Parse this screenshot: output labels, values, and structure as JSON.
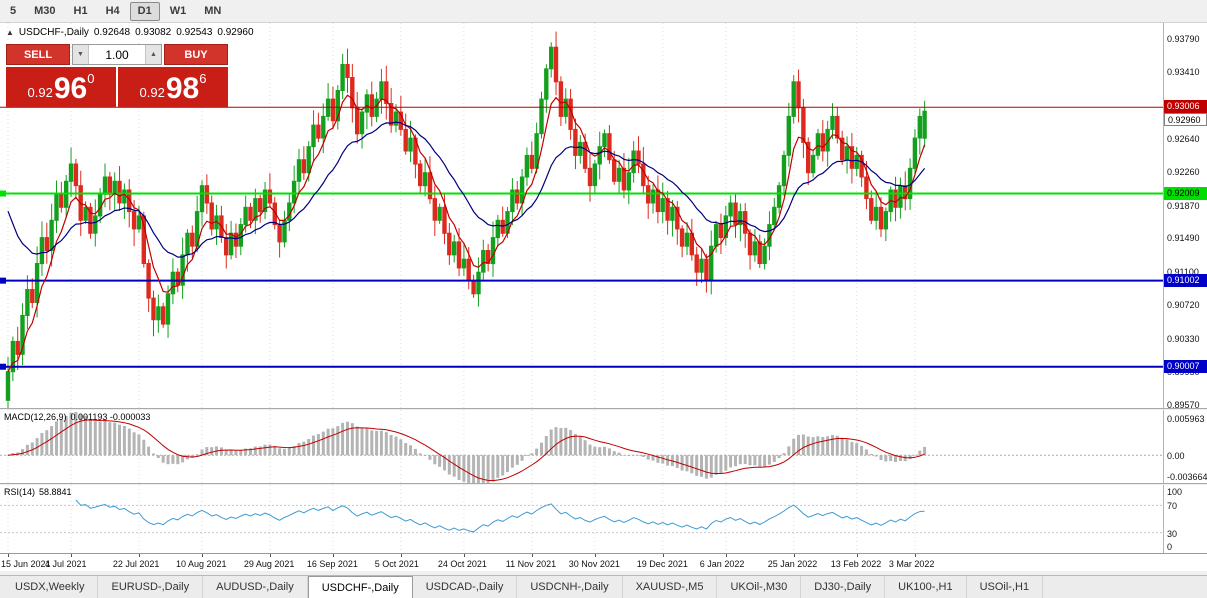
{
  "toolbar": {
    "timeframes": [
      {
        "label": "5",
        "active": false
      },
      {
        "label": "M30",
        "active": false
      },
      {
        "label": "H1",
        "active": false
      },
      {
        "label": "H4",
        "active": false
      },
      {
        "label": "D1",
        "active": true
      },
      {
        "label": "W1",
        "active": false
      },
      {
        "label": "MN",
        "active": false
      }
    ]
  },
  "chart": {
    "header": {
      "collapse_icon": "▲",
      "title": "USDCHF-,Daily",
      "open": "0.92648",
      "high": "0.93082",
      "low": "0.92543",
      "close": "0.92960"
    },
    "trade_panel": {
      "sell_label": "SELL",
      "buy_label": "BUY",
      "volume": "1.00",
      "vol_down_icon": "▼",
      "vol_up_icon": "▲",
      "sell_price": {
        "prefix": "0.92",
        "big": "96",
        "sup": "0"
      },
      "buy_price": {
        "prefix": "0.92",
        "big": "98",
        "sup": "6"
      }
    },
    "price_axis_labels": [
      "0.93790",
      "0.93410",
      "0.93030",
      "0.92640",
      "0.92260",
      "0.91870",
      "0.91490",
      "0.91100",
      "0.90720",
      "0.90330",
      "0.89950",
      "0.89570"
    ],
    "hlines": [
      {
        "price": 0.93006,
        "label": "0.93006",
        "color": "#b80000",
        "box_bg": "#c00000",
        "text": "#ffffff",
        "width": 1,
        "handle": false
      },
      {
        "price": 0.92009,
        "label": "0.92009",
        "color": "#00e100",
        "box_bg": "#00dd00",
        "text": "#000000",
        "width": 2,
        "handle": true
      },
      {
        "price": 0.91002,
        "label": "0.91002",
        "color": "#0000c0",
        "box_bg": "#0000c8",
        "text": "#ffffff",
        "width": 2,
        "handle": true
      },
      {
        "price": 0.90007,
        "label": "0.90007",
        "color": "#0000c0",
        "box_bg": "#0000c8",
        "text": "#ffffff",
        "width": 2,
        "handle": true
      }
    ],
    "bid_box_label": "0.92960"
  },
  "chart_data": {
    "type": "candlestick",
    "symbol": "USDCHF-",
    "timeframe": "Daily",
    "current_ohlc": {
      "open": 0.92648,
      "high": 0.93082,
      "low": 0.92543,
      "close": 0.9296
    },
    "first_open": 0.8962,
    "closes": [
      0.8995,
      0.903,
      0.9015,
      0.906,
      0.909,
      0.9075,
      0.912,
      0.915,
      0.9135,
      0.917,
      0.92,
      0.9185,
      0.9215,
      0.9235,
      0.921,
      0.917,
      0.9185,
      0.9155,
      0.9175,
      0.92,
      0.922,
      0.92,
      0.9215,
      0.919,
      0.9205,
      0.918,
      0.916,
      0.9175,
      0.912,
      0.908,
      0.9055,
      0.907,
      0.905,
      0.9085,
      0.911,
      0.9095,
      0.913,
      0.9155,
      0.914,
      0.918,
      0.921,
      0.919,
      0.916,
      0.9175,
      0.915,
      0.913,
      0.9155,
      0.914,
      0.9165,
      0.9185,
      0.917,
      0.9195,
      0.918,
      0.9205,
      0.919,
      0.9165,
      0.9145,
      0.917,
      0.919,
      0.9215,
      0.924,
      0.9225,
      0.9255,
      0.928,
      0.9265,
      0.929,
      0.931,
      0.9285,
      0.932,
      0.935,
      0.9335,
      0.93,
      0.927,
      0.9295,
      0.9315,
      0.929,
      0.931,
      0.933,
      0.9305,
      0.928,
      0.9295,
      0.9275,
      0.925,
      0.9265,
      0.9235,
      0.921,
      0.9225,
      0.9195,
      0.917,
      0.9185,
      0.9155,
      0.913,
      0.9145,
      0.9115,
      0.9125,
      0.91,
      0.9085,
      0.911,
      0.9135,
      0.912,
      0.915,
      0.917,
      0.9155,
      0.918,
      0.9205,
      0.919,
      0.922,
      0.9245,
      0.923,
      0.927,
      0.931,
      0.9345,
      0.937,
      0.933,
      0.929,
      0.931,
      0.9275,
      0.9245,
      0.926,
      0.923,
      0.921,
      0.9235,
      0.9255,
      0.927,
      0.924,
      0.9215,
      0.923,
      0.9205,
      0.9225,
      0.925,
      0.9235,
      0.921,
      0.919,
      0.9205,
      0.918,
      0.9195,
      0.917,
      0.9185,
      0.916,
      0.914,
      0.9155,
      0.913,
      0.911,
      0.9125,
      0.91,
      0.914,
      0.9165,
      0.915,
      0.9175,
      0.919,
      0.9165,
      0.918,
      0.9155,
      0.913,
      0.9145,
      0.912,
      0.914,
      0.9165,
      0.9185,
      0.921,
      0.9245,
      0.929,
      0.933,
      0.93,
      0.926,
      0.9225,
      0.9245,
      0.927,
      0.925,
      0.9275,
      0.929,
      0.9265,
      0.924,
      0.9255,
      0.923,
      0.9245,
      0.922,
      0.9195,
      0.917,
      0.9185,
      0.916,
      0.918,
      0.9205,
      0.9185,
      0.921,
      0.9195,
      0.923,
      0.9265,
      0.929,
      0.9296
    ],
    "date_labels": [
      "15 Jun 2021",
      "4 Jul 2021",
      "22 Jul 2021",
      "10 Aug 2021",
      "29 Aug 2021",
      "16 Sep 2021",
      "5 Oct 2021",
      "24 Oct 2021",
      "11 Nov 2021",
      "30 Nov 2021",
      "19 Dec 2021",
      "6 Jan 2022",
      "25 Jan 2022",
      "13 Feb 2022",
      "3 Mar 2022"
    ],
    "date_label_indices": [
      0,
      13,
      27,
      40,
      54,
      67,
      81,
      94,
      108,
      121,
      135,
      148,
      162,
      175,
      187
    ],
    "moving_averages": [
      {
        "period": 6,
        "color": "#c00000",
        "seed": null
      },
      {
        "period": 20,
        "color": "#00007f",
        "seed": 0.92
      }
    ],
    "macd": {
      "label": "MACD(12,26,9)",
      "values_text": "0.001193 -0.000033",
      "fast": 12,
      "slow": 26,
      "signal": 9,
      "scale_max": 0.005963,
      "scale_min": -0.003664,
      "axis_labels": [
        "0.005963",
        "0.00",
        "-0.003664"
      ],
      "hist_color": "#b4b4b4",
      "line_color": "#c00000"
    },
    "rsi": {
      "label": "RSI(14)",
      "value_text": "58.8841",
      "period": 14,
      "levels": [
        70,
        30
      ],
      "axis_labels": [
        "100",
        "70",
        "30",
        "0"
      ],
      "line_color": "#3d9bd5"
    },
    "colors": {
      "bull": "#14a01e",
      "bear": "#dd2a1e",
      "grid": "#dcdcdc"
    }
  },
  "tabs": [
    {
      "label": "USDX,Weekly",
      "active": false
    },
    {
      "label": "EURUSD-,Daily",
      "active": false
    },
    {
      "label": "AUDUSD-,Daily",
      "active": false
    },
    {
      "label": "USDCHF-,Daily",
      "active": true
    },
    {
      "label": "USDCAD-,Daily",
      "active": false
    },
    {
      "label": "USDCNH-,Daily",
      "active": false
    },
    {
      "label": "XAUUSD-,M5",
      "active": false
    },
    {
      "label": "UKOil-,M30",
      "active": false
    },
    {
      "label": "DJ30-,Daily",
      "active": false
    },
    {
      "label": "UK100-,H1",
      "active": false
    },
    {
      "label": "USOil-,H1",
      "active": false
    }
  ]
}
